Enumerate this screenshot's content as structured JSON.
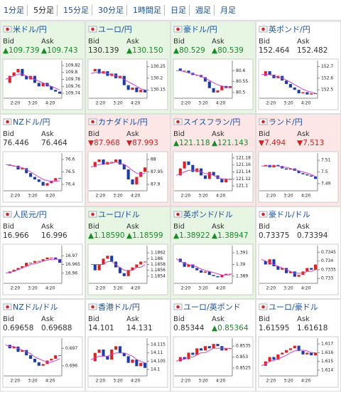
{
  "tabs": {
    "labels": [
      "1分足",
      "5分足",
      "15分足",
      "30分足",
      "1時間足",
      "日足",
      "週足",
      "月足"
    ],
    "active": 1
  },
  "labels": {
    "bid": "Bid",
    "ask": "Ask"
  },
  "time_labels": [
    "2:20",
    "3:20",
    "4:20"
  ],
  "panels": [
    {
      "title": "米ドル/円",
      "bid": "▲109.739",
      "ask": "▲109.743",
      "bg": "#e6f6e2",
      "chart": {
        "ylim": [
          109.73,
          109.83
        ],
        "yticks": [
          109.82,
          109.8,
          109.78,
          109.76,
          109.74
        ],
        "closes": [
          109.77,
          109.79,
          109.8,
          109.81,
          109.79,
          109.78,
          109.79,
          109.77,
          109.76,
          109.77,
          109.76,
          109.75,
          109.745,
          109.739
        ],
        "ma": [
          109.78,
          109.785,
          109.79,
          109.795,
          109.795,
          109.79,
          109.785,
          109.78,
          109.775,
          109.77,
          109.765,
          109.76,
          109.755,
          109.75
        ]
      }
    },
    {
      "title": "ユーロ/円",
      "bid": "130.139",
      "ask": "▲130.150",
      "bg": "#e6f6e2",
      "chart": {
        "ylim": [
          130.12,
          130.27
        ],
        "yticks": [
          130.25,
          130.2,
          130.15
        ],
        "closes": [
          130.23,
          130.24,
          130.22,
          130.23,
          130.21,
          130.22,
          130.2,
          130.21,
          130.17,
          130.15,
          130.16,
          130.14,
          130.15,
          130.139
        ],
        "ma": [
          130.22,
          130.225,
          130.225,
          130.225,
          130.22,
          130.215,
          130.21,
          130.205,
          130.195,
          130.185,
          130.175,
          130.165,
          130.155,
          130.15
        ]
      }
    },
    {
      "title": "豪ドル/円",
      "bid": "▲80.529",
      "ask": "▲80.539",
      "bg": "#e6f6e2",
      "chart": {
        "ylim": [
          80.48,
          80.64
        ],
        "yticks": [
          80.6,
          80.55,
          80.5
        ],
        "closes": [
          80.61,
          80.6,
          80.6,
          80.59,
          80.58,
          80.58,
          80.57,
          80.55,
          80.52,
          80.5,
          80.51,
          80.53,
          80.52,
          80.529
        ],
        "ma": [
          80.6,
          80.6,
          80.595,
          80.59,
          80.585,
          80.58,
          80.575,
          80.565,
          80.555,
          80.545,
          80.535,
          80.53,
          80.525,
          80.525
        ]
      }
    },
    {
      "title": "英ポンド/円",
      "bid": "152.464",
      "ask": "152.482",
      "bg": "#ffffff",
      "chart": {
        "ylim": [
          152.44,
          152.74
        ],
        "yticks": [
          152.7,
          152.6,
          152.5
        ],
        "closes": [
          152.62,
          152.66,
          152.63,
          152.6,
          152.62,
          152.58,
          152.55,
          152.52,
          152.5,
          152.47,
          152.48,
          152.46,
          152.47,
          152.464
        ],
        "ma": [
          152.63,
          152.635,
          152.63,
          152.62,
          152.61,
          152.6,
          152.585,
          152.565,
          152.545,
          152.525,
          152.505,
          152.49,
          152.48,
          152.47
        ]
      }
    },
    {
      "title": "NZドル/円",
      "bid": "76.446",
      "ask": "76.464",
      "bg": "#ffffff",
      "chart": {
        "ylim": [
          76.36,
          76.64
        ],
        "yticks": [
          76.6,
          76.5,
          76.4
        ],
        "closes": [
          76.56,
          76.55,
          76.55,
          76.52,
          76.53,
          76.49,
          76.46,
          76.44,
          76.42,
          76.39,
          76.41,
          76.43,
          76.45,
          76.446
        ],
        "ma": [
          76.56,
          76.555,
          76.55,
          76.54,
          76.535,
          76.52,
          76.5,
          76.48,
          76.46,
          76.44,
          76.43,
          76.425,
          76.425,
          76.43
        ]
      }
    },
    {
      "title": "カナダドル/円",
      "bid": "▼87.968",
      "ask": "▼87.993",
      "bg": "#fce6e6",
      "chart": {
        "ylim": [
          87.88,
          88.02
        ],
        "yticks": [
          88,
          87.95,
          87.9
        ],
        "closes": [
          87.97,
          87.99,
          88,
          87.98,
          87.99,
          87.99,
          88,
          87.98,
          87.96,
          87.92,
          87.9,
          87.93,
          87.95,
          87.968
        ],
        "ma": [
          87.97,
          87.975,
          87.98,
          87.98,
          87.985,
          87.985,
          87.99,
          87.985,
          87.98,
          87.97,
          87.955,
          87.945,
          87.94,
          87.945
        ]
      }
    },
    {
      "title": "スイスフラン/円",
      "bid": "▲121.118",
      "ask": "▲121.143",
      "bg": "#fce6e6",
      "chart": {
        "ylim": [
          121.09,
          121.19
        ],
        "yticks": [
          121.18,
          121.16,
          121.14,
          121.12,
          121.1
        ],
        "closes": [
          121.13,
          121.15,
          121.17,
          121.16,
          121.14,
          121.15,
          121.13,
          121.12,
          121.14,
          121.13,
          121.12,
          121.11,
          121.12,
          121.118
        ],
        "ma": [
          121.13,
          121.135,
          121.14,
          121.145,
          121.145,
          121.145,
          121.14,
          121.135,
          121.135,
          121.13,
          121.125,
          121.12,
          121.12,
          121.118
        ]
      }
    },
    {
      "title": "ランド/円",
      "bid": "▼7.494",
      "ask": "▼7.513",
      "bg": "#fce6e6",
      "chart": {
        "ylim": [
          7.485,
          7.515
        ],
        "yticks": [
          7.51,
          7.5,
          7.49
        ],
        "closes": [
          7.505,
          7.506,
          7.504,
          7.506,
          7.505,
          7.503,
          7.502,
          7.503,
          7.501,
          7.499,
          7.498,
          7.497,
          7.496,
          7.494
        ],
        "ma": [
          7.505,
          7.505,
          7.505,
          7.505,
          7.505,
          7.504,
          7.504,
          7.503,
          7.502,
          7.501,
          7.5,
          7.499,
          7.498,
          7.496
        ]
      }
    },
    {
      "title": "人民元/円",
      "bid": "16.966",
      "ask": "16.996",
      "bg": "#ffffff",
      "chart": {
        "ylim": [
          16.955,
          16.975
        ],
        "yticks": [
          16.97,
          16.965,
          16.96
        ],
        "closes": [
          16.96,
          16.961,
          16.962,
          16.963,
          16.964,
          16.966,
          16.966,
          16.967,
          16.967,
          16.968,
          16.969,
          16.969,
          16.968,
          16.966
        ],
        "ma": [
          16.96,
          16.9605,
          16.961,
          16.962,
          16.963,
          16.964,
          16.965,
          16.9655,
          16.966,
          16.967,
          16.9675,
          16.968,
          16.968,
          16.968
        ]
      }
    },
    {
      "title": "ユーロ/ドル",
      "bid": "▲1.18590",
      "ask": "▲1.18599",
      "bg": "#e6f6e2",
      "chart": {
        "ylim": [
          1.1852,
          1.1864
        ],
        "yticks": [
          1.1862,
          1.186,
          1.1858,
          1.1856,
          1.1854
        ],
        "closes": [
          1.1858,
          1.1856,
          1.1858,
          1.186,
          1.1861,
          1.1859,
          1.1857,
          1.1855,
          1.1854,
          1.1856,
          1.1857,
          1.1858,
          1.1859,
          1.1859
        ],
        "ma": [
          1.1858,
          1.1858,
          1.1858,
          1.1858,
          1.1859,
          1.1859,
          1.1858,
          1.1857,
          1.1856,
          1.1856,
          1.1856,
          1.1857,
          1.1857,
          1.1858
        ]
      }
    },
    {
      "title": "英ポンド/ドル",
      "bid": "▲1.38922",
      "ask": "▲1.38947",
      "bg": "#e6f6e2",
      "chart": {
        "ylim": [
          1.3885,
          1.3915
        ],
        "yticks": [
          1.391,
          1.39,
          1.389
        ],
        "closes": [
          1.3905,
          1.3902,
          1.3898,
          1.39,
          1.3897,
          1.3895,
          1.3893,
          1.3894,
          1.3891,
          1.389,
          1.3889,
          1.3891,
          1.3892,
          1.3892
        ],
        "ma": [
          1.3905,
          1.3903,
          1.3901,
          1.39,
          1.3899,
          1.3898,
          1.3896,
          1.3895,
          1.3894,
          1.3893,
          1.3892,
          1.3891,
          1.3891,
          1.3891
        ]
      }
    },
    {
      "title": "豪ドル/ドル",
      "bid": "0.73375",
      "ask": "0.73394",
      "bg": "#ffffff",
      "chart": {
        "ylim": [
          0.7328,
          0.7348
        ],
        "yticks": [
          0.7345,
          0.734,
          0.7335,
          0.733
        ],
        "closes": [
          0.734,
          0.7338,
          0.7341,
          0.7337,
          0.7335,
          0.7336,
          0.7333,
          0.7334,
          0.7331,
          0.7332,
          0.7334,
          0.7336,
          0.7335,
          0.7338
        ],
        "ma": [
          0.7341,
          0.734,
          0.7339,
          0.7338,
          0.7337,
          0.7336,
          0.7335,
          0.7334,
          0.7333,
          0.7333,
          0.7333,
          0.7334,
          0.7334,
          0.7335
        ]
      }
    },
    {
      "title": "NZドル/ドル",
      "bid": "0.69658",
      "ask": "0.69688",
      "bg": "#ffffff",
      "chart": {
        "ylim": [
          0.6955,
          0.6975
        ],
        "yticks": [
          0.697,
          0.696
        ],
        "closes": [
          0.6972,
          0.697,
          0.6971,
          0.6968,
          0.6969,
          0.6966,
          0.6964,
          0.6962,
          0.696,
          0.6961,
          0.6963,
          0.6964,
          0.6966,
          0.6966
        ],
        "ma": [
          0.6972,
          0.6971,
          0.6971,
          0.697,
          0.6969,
          0.6968,
          0.6967,
          0.6965,
          0.6964,
          0.6963,
          0.6962,
          0.6962,
          0.6963,
          0.6964
        ]
      }
    },
    {
      "title": "香港ドル/円",
      "bid": "14.101",
      "ask": "14.131",
      "bg": "#ffffff",
      "chart": {
        "ylim": [
          14.097,
          14.118
        ],
        "yticks": [
          14.115,
          14.11,
          14.105,
          14.1
        ],
        "closes": [
          14.105,
          14.11,
          14.112,
          14.108,
          14.106,
          14.112,
          14.114,
          14.11,
          14.108,
          14.104,
          14.106,
          14.102,
          14.104,
          14.101
        ],
        "ma": [
          14.106,
          14.107,
          14.108,
          14.108,
          14.108,
          14.109,
          14.11,
          14.11,
          14.11,
          14.109,
          14.108,
          14.106,
          14.105,
          14.104
        ]
      }
    },
    {
      "title": "ユーロ/英ポンド",
      "bid": "0.85344",
      "ask": "▲0.85364",
      "bg": "#ffffff",
      "chart": {
        "ylim": [
          0.8522,
          0.8538
        ],
        "yticks": [
          0.8535,
          0.853,
          0.8525
        ],
        "closes": [
          0.8528,
          0.853,
          0.8529,
          0.8532,
          0.8531,
          0.8534,
          0.8533,
          0.8535,
          0.8534,
          0.8536,
          0.8535,
          0.8533,
          0.8534,
          0.8534
        ],
        "ma": [
          0.8528,
          0.8529,
          0.8529,
          0.853,
          0.853,
          0.8531,
          0.8532,
          0.8532,
          0.8533,
          0.8534,
          0.8534,
          0.8534,
          0.8534,
          0.8534
        ]
      }
    },
    {
      "title": "ユーロ/豪ドル",
      "bid": "1.61595",
      "ask": "1.61618",
      "bg": "#ffffff",
      "chart": {
        "ylim": [
          1.6135,
          1.6175
        ],
        "yticks": [
          1.617,
          1.616,
          1.615,
          1.614
        ],
        "closes": [
          1.6145,
          1.615,
          1.6155,
          1.6152,
          1.6158,
          1.616,
          1.6163,
          1.6165,
          1.6168,
          1.6162,
          1.6158,
          1.616,
          1.6157,
          1.616
        ],
        "ma": [
          1.6145,
          1.6147,
          1.615,
          1.6151,
          1.6153,
          1.6155,
          1.6157,
          1.616,
          1.6162,
          1.6163,
          1.6163,
          1.6162,
          1.616,
          1.616
        ]
      }
    }
  ]
}
